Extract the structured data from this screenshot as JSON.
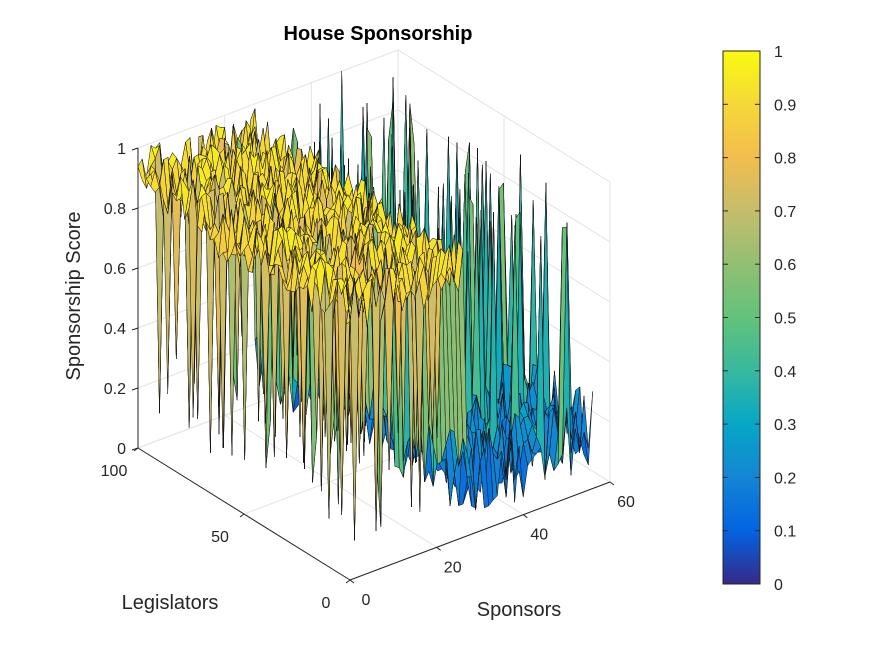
{
  "chart_data": {
    "type": "surface",
    "title": "House Sponsorship",
    "xlabel": "Sponsors",
    "ylabel": "Legislators",
    "zlabel": "Sponsorship Score",
    "xlim": [
      0,
      60
    ],
    "ylim": [
      0,
      100
    ],
    "zlim": [
      0,
      1
    ],
    "x_ticks": [
      "0",
      "20",
      "40",
      "60"
    ],
    "y_ticks": [
      "0",
      "50",
      "100"
    ],
    "z_ticks": [
      "0",
      "0.2",
      "0.4",
      "0.6",
      "0.8",
      "1"
    ],
    "colorbar": {
      "range": [
        0,
        1
      ],
      "ticks": [
        "0",
        "0.1",
        "0.2",
        "0.3",
        "0.4",
        "0.5",
        "0.6",
        "0.7",
        "0.8",
        "0.9",
        "1"
      ]
    },
    "colormap": "parula",
    "grid": true,
    "note_on_values": "Values are sponsorship scores on a 0–1 scale; roughly sponsors 0–26 have high scores (about 0.8–1) for most legislators and sponsors 27–55 have low scores (about 0.05–0.3)."
  }
}
